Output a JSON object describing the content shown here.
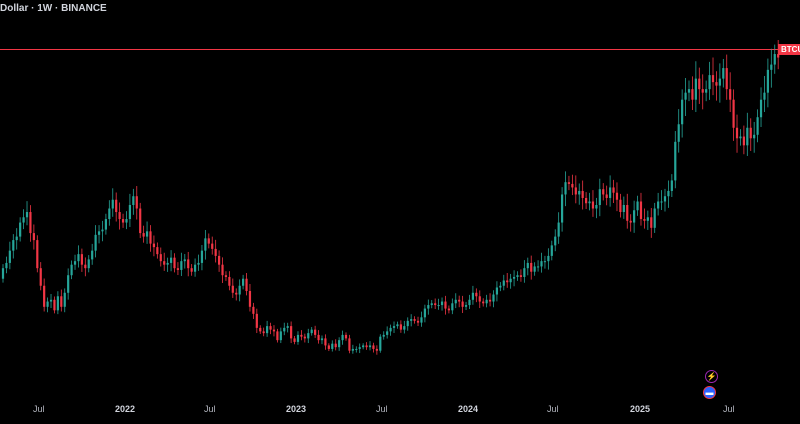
{
  "header": {
    "symbol_name": "Dollar",
    "separator": "·",
    "interval": "1W",
    "exchange": "BINANCE"
  },
  "price_tag": {
    "label": "BTCUSDT"
  },
  "colors": {
    "up": "#26a69a",
    "down": "#f23645",
    "last_price_line": "#f23645",
    "background": "#000000"
  },
  "events": [
    {
      "icon": "lightning-icon"
    },
    {
      "icon": "flag-icon"
    }
  ],
  "chart_data": {
    "type": "candlestick",
    "title": "",
    "xlabel": "",
    "ylabel": "",
    "x_axis_labels": [
      "Jul",
      "2022",
      "Jul",
      "2023",
      "Jul",
      "2024",
      "Jul",
      "2025",
      "Jul"
    ],
    "grid": false,
    "closes": [
      47000,
      48500,
      52000,
      55000,
      56000,
      60000,
      61500,
      63000,
      57000,
      55000,
      47000,
      42000,
      36000,
      37500,
      38000,
      35000,
      39000,
      36000,
      40000,
      45000,
      48000,
      49000,
      51000,
      48000,
      47000,
      49500,
      52000,
      56500,
      57500,
      58000,
      61000,
      64000,
      66500,
      63000,
      61000,
      60000,
      61000,
      65000,
      67500,
      64000,
      57000,
      56000,
      57500,
      54000,
      53000,
      51000,
      49000,
      48000,
      48500,
      50000,
      47000,
      46500,
      49000,
      49500,
      47000,
      46000,
      48000,
      48500,
      52000,
      55500,
      54000,
      52500,
      50500,
      48000,
      45000,
      44500,
      42000,
      40000,
      39500,
      42000,
      44000,
      40500,
      36000,
      34000,
      30000,
      29000,
      28500,
      30500,
      29500,
      29000,
      26500,
      29000,
      30000,
      30500,
      27000,
      26000,
      28000,
      27500,
      27000,
      28500,
      29500,
      28000,
      26500,
      27000,
      25000,
      24000,
      25500,
      24500,
      26500,
      28000,
      27000,
      23500,
      24000,
      24000,
      24500,
      25000,
      24500,
      25000,
      24000,
      23500,
      27500,
      28000,
      29000,
      30000,
      30500,
      31000,
      29500,
      30500,
      32000,
      32500,
      32000,
      31500,
      33000,
      35500,
      36500,
      37000,
      36500,
      36500,
      37500,
      35500,
      35000,
      37000,
      38000,
      37500,
      36000,
      36500,
      38000,
      40000,
      39000,
      37500,
      37000,
      38000,
      37500,
      39500,
      41500,
      42000,
      43500,
      43000,
      44000,
      44500,
      45000,
      44500,
      47000,
      48500,
      46000,
      47500,
      47500,
      49000,
      49000,
      50500,
      53500,
      56000,
      60000,
      68000,
      71500,
      71000,
      70000,
      68000,
      69000,
      67000,
      65500,
      66000,
      64000,
      65000,
      69500,
      68000,
      67000,
      70000,
      68500,
      66500,
      63000,
      65000,
      60500,
      60000,
      63500,
      66000,
      61000,
      60500,
      61500,
      58500,
      64000,
      66000,
      66000,
      67500,
      69000,
      72000,
      83000,
      88000,
      95000,
      97000,
      98000,
      95000,
      101000,
      98000,
      97000,
      98000,
      102000,
      100000,
      99000,
      101000,
      104000,
      98000,
      95000,
      87000,
      84000,
      84500,
      82000,
      87000,
      84000,
      85000,
      90000,
      95000,
      97000,
      103500,
      105000,
      108000,
      107000
    ]
  }
}
